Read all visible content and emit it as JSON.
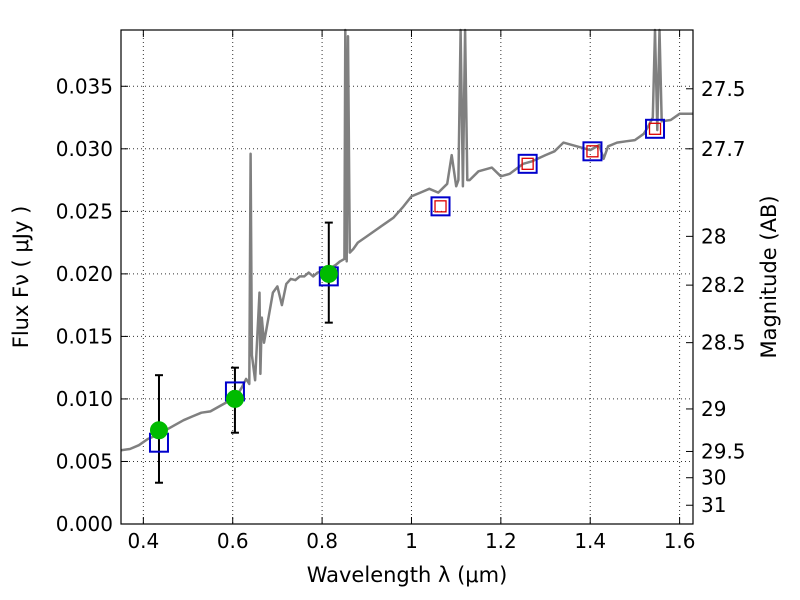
{
  "chart_data": {
    "type": "line",
    "title": "",
    "xlabel": "Wavelength  λ (μm)",
    "ylabel": "Flux  Fν  ( μJy )",
    "y2label": "Magnitude (AB)",
    "xlim": [
      0.35,
      1.63
    ],
    "ylim": [
      0.0,
      0.0395
    ],
    "grid": true,
    "x_ticks": [
      0.4,
      0.6,
      0.8,
      1.0,
      1.2,
      1.4,
      1.6
    ],
    "x_tick_labels": [
      "0.4",
      "0.6",
      "0.8",
      "1",
      "1.2",
      "1.4",
      "1.6"
    ],
    "y_ticks": [
      0.0,
      0.005,
      0.01,
      0.015,
      0.02,
      0.025,
      0.03,
      0.035
    ],
    "y_tick_labels": [
      "0.000",
      "0.005",
      "0.010",
      "0.015",
      "0.020",
      "0.025",
      "0.030",
      "0.035"
    ],
    "mag_ticks": [
      {
        "flux": 0.0348,
        "label": "27.5"
      },
      {
        "flux": 0.03,
        "label": "27.7"
      },
      {
        "flux": 0.023,
        "label": "28"
      },
      {
        "flux": 0.0191,
        "label": "28.2"
      },
      {
        "flux": 0.0145,
        "label": "28.5"
      },
      {
        "flux": 0.0092,
        "label": "29"
      },
      {
        "flux": 0.0058,
        "label": "29.5"
      },
      {
        "flux": 0.0037,
        "label": "30"
      },
      {
        "flux": 0.0015,
        "label": "31"
      }
    ],
    "colors": {
      "spectrum": "#808080",
      "observed": "#00bb00",
      "model_box": "#0000cc",
      "model_inner": "#dd0000",
      "errorbar": "#000000"
    },
    "series": [
      {
        "kind": "spectrum",
        "x": [
          0.35,
          0.37,
          0.39,
          0.41,
          0.43,
          0.45,
          0.47,
          0.49,
          0.51,
          0.53,
          0.55,
          0.57,
          0.59,
          0.61,
          0.62,
          0.63,
          0.637,
          0.64,
          0.643,
          0.65,
          0.66,
          0.662,
          0.665,
          0.67,
          0.68,
          0.69,
          0.7,
          0.71,
          0.72,
          0.73,
          0.74,
          0.75,
          0.76,
          0.77,
          0.78,
          0.79,
          0.8,
          0.81,
          0.82,
          0.83,
          0.84,
          0.85,
          0.852,
          0.855,
          0.858,
          0.862,
          0.87,
          0.88,
          0.9,
          0.92,
          0.94,
          0.96,
          0.98,
          1.0,
          1.02,
          1.04,
          1.06,
          1.08,
          1.09,
          1.1,
          1.105,
          1.11,
          1.115,
          1.12,
          1.125,
          1.13,
          1.15,
          1.18,
          1.2,
          1.22,
          1.25,
          1.27,
          1.3,
          1.32,
          1.34,
          1.36,
          1.38,
          1.4,
          1.42,
          1.43,
          1.44,
          1.46,
          1.48,
          1.5,
          1.52,
          1.53,
          1.54,
          1.545,
          1.55,
          1.555,
          1.56,
          1.58,
          1.6,
          1.63
        ],
        "y": [
          0.0059,
          0.006,
          0.0063,
          0.0068,
          0.0071,
          0.0075,
          0.0079,
          0.0083,
          0.0086,
          0.0089,
          0.009,
          0.0094,
          0.0098,
          0.0103,
          0.0109,
          0.0116,
          0.0112,
          0.0296,
          0.0135,
          0.0115,
          0.0185,
          0.012,
          0.0165,
          0.0145,
          0.0165,
          0.0185,
          0.019,
          0.0175,
          0.0192,
          0.0196,
          0.0195,
          0.0198,
          0.0198,
          0.0201,
          0.0198,
          0.0201,
          0.0202,
          0.0202,
          0.0205,
          0.0207,
          0.021,
          0.0212,
          0.0395,
          0.021,
          0.039,
          0.0217,
          0.022,
          0.0225,
          0.023,
          0.0235,
          0.024,
          0.0245,
          0.0253,
          0.0262,
          0.0265,
          0.0268,
          0.0265,
          0.0272,
          0.0295,
          0.027,
          0.0275,
          0.0395,
          0.027,
          0.0395,
          0.0275,
          0.0275,
          0.0282,
          0.0285,
          0.0278,
          0.028,
          0.0288,
          0.029,
          0.0295,
          0.0298,
          0.0305,
          0.0303,
          0.0301,
          0.0299,
          0.0303,
          0.0292,
          0.0302,
          0.0305,
          0.0306,
          0.0307,
          0.0312,
          0.0318,
          0.0325,
          0.0395,
          0.0315,
          0.0395,
          0.0322,
          0.0323,
          0.0328,
          0.0328
        ]
      },
      {
        "kind": "model",
        "x": [
          0.435,
          0.605,
          0.815,
          1.065,
          1.26,
          1.405,
          1.545
        ],
        "y": [
          0.0065,
          0.0106,
          0.0198,
          0.0254,
          0.0288,
          0.0298,
          0.0316
        ]
      },
      {
        "kind": "observed",
        "x": [
          0.435,
          0.605,
          0.815
        ],
        "y": [
          0.0075,
          0.01,
          0.02
        ],
        "err_low": [
          0.0033,
          0.0073,
          0.0161
        ],
        "err_high": [
          0.0119,
          0.0125,
          0.0241
        ]
      }
    ]
  }
}
